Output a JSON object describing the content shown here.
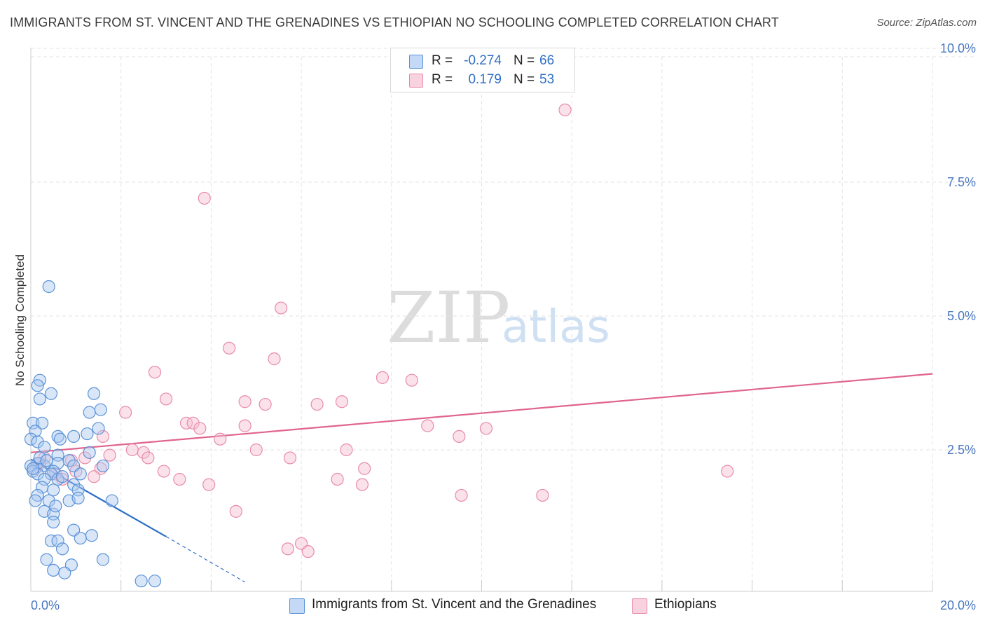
{
  "header": {
    "title": "IMMIGRANTS FROM ST. VINCENT AND THE GRENADINES VS ETHIOPIAN NO SCHOOLING COMPLETED CORRELATION CHART",
    "source": "Source: ZipAtlas.com"
  },
  "watermark": {
    "zip": "ZIP",
    "atlas": "atlas"
  },
  "stats": [
    {
      "r_label": "R =",
      "r_value": "-0.274",
      "n_label": "N =",
      "n_value": "66"
    },
    {
      "r_label": "R =",
      "r_value": "0.179",
      "n_label": "N =",
      "n_value": "53"
    }
  ],
  "legend": [
    {
      "label": "Immigrants from St. Vincent and the Grenadines"
    },
    {
      "label": "Ethiopians"
    }
  ],
  "colors": {
    "blue_fill": "#a9c8ef",
    "blue_stroke": "#5b93d8",
    "blue_line": "#2f6fc7",
    "pink_fill": "#f6bfd1",
    "pink_stroke": "#e98aab",
    "pink_line": "#e0648e",
    "grid": "#e3e3e3",
    "tick_text": "#4a78c2"
  },
  "chart_data": {
    "type": "scatter",
    "title": "IMMIGRANTS FROM ST. VINCENT AND THE GRENADINES VS ETHIOPIAN NO SCHOOLING COMPLETED CORRELATION CHART",
    "xlabel": "",
    "ylabel": "No Schooling Completed",
    "xlim": [
      0,
      20
    ],
    "ylim": [
      0,
      10
    ],
    "x_tick_labels": [
      {
        "value": 0,
        "label": "0.0%"
      },
      {
        "value": 20,
        "label": "20.0%"
      }
    ],
    "y_tick_labels": [
      {
        "value": 2.5,
        "label": "2.5%"
      },
      {
        "value": 5,
        "label": "5.0%"
      },
      {
        "value": 7.5,
        "label": "7.5%"
      },
      {
        "value": 10,
        "label": "10.0%"
      }
    ],
    "series": [
      {
        "name": "Immigrants from St. Vincent and the Grenadines",
        "points": [
          [
            0.4,
            5.55
          ],
          [
            0.2,
            3.8
          ],
          [
            0.15,
            3.7
          ],
          [
            0.45,
            3.55
          ],
          [
            0.2,
            3.45
          ],
          [
            1.4,
            3.55
          ],
          [
            1.55,
            3.25
          ],
          [
            1.3,
            3.2
          ],
          [
            0.05,
            3.0
          ],
          [
            0.25,
            3.0
          ],
          [
            0.1,
            2.85
          ],
          [
            1.5,
            2.9
          ],
          [
            0.6,
            2.75
          ],
          [
            0.95,
            2.75
          ],
          [
            1.25,
            2.8
          ],
          [
            0.0,
            2.7
          ],
          [
            0.15,
            2.65
          ],
          [
            0.65,
            2.7
          ],
          [
            0.3,
            2.55
          ],
          [
            0.6,
            2.4
          ],
          [
            1.3,
            2.45
          ],
          [
            0.85,
            2.3
          ],
          [
            0.15,
            2.25
          ],
          [
            0.0,
            2.2
          ],
          [
            0.3,
            2.2
          ],
          [
            0.6,
            2.25
          ],
          [
            0.95,
            2.2
          ],
          [
            1.6,
            2.2
          ],
          [
            0.05,
            2.1
          ],
          [
            0.5,
            2.1
          ],
          [
            0.15,
            2.05
          ],
          [
            0.45,
            2.05
          ],
          [
            1.1,
            2.05
          ],
          [
            0.3,
            1.95
          ],
          [
            0.6,
            1.95
          ],
          [
            0.7,
            2.0
          ],
          [
            0.25,
            1.8
          ],
          [
            0.5,
            1.75
          ],
          [
            0.95,
            1.85
          ],
          [
            1.05,
            1.75
          ],
          [
            0.15,
            1.65
          ],
          [
            0.1,
            1.55
          ],
          [
            0.4,
            1.55
          ],
          [
            0.85,
            1.55
          ],
          [
            1.8,
            1.55
          ],
          [
            0.3,
            1.35
          ],
          [
            0.5,
            1.3
          ],
          [
            0.5,
            1.15
          ],
          [
            0.95,
            1.0
          ],
          [
            0.45,
            0.8
          ],
          [
            0.6,
            0.8
          ],
          [
            1.1,
            0.85
          ],
          [
            1.35,
            0.9
          ],
          [
            0.7,
            0.65
          ],
          [
            0.35,
            0.45
          ],
          [
            1.6,
            0.45
          ],
          [
            0.9,
            0.35
          ],
          [
            0.5,
            0.25
          ],
          [
            0.75,
            0.2
          ],
          [
            2.45,
            0.05
          ],
          [
            2.75,
            0.05
          ],
          [
            0.2,
            2.35
          ],
          [
            0.05,
            2.15
          ],
          [
            0.35,
            2.3
          ],
          [
            1.05,
            1.6
          ],
          [
            0.55,
            1.45
          ]
        ],
        "trend": {
          "x": [
            0.0,
            3.0
          ],
          "y": [
            2.32,
            0.88
          ]
        },
        "trend_dashed": {
          "x": [
            3.0,
            4.75
          ],
          "y": [
            0.88,
            0.03
          ]
        }
      },
      {
        "name": "Ethiopians",
        "points": [
          [
            11.85,
            8.85
          ],
          [
            3.85,
            7.2
          ],
          [
            5.55,
            5.15
          ],
          [
            4.4,
            4.4
          ],
          [
            5.4,
            4.2
          ],
          [
            2.75,
            3.95
          ],
          [
            7.8,
            3.85
          ],
          [
            8.45,
            3.8
          ],
          [
            3.0,
            3.45
          ],
          [
            4.75,
            3.4
          ],
          [
            5.2,
            3.35
          ],
          [
            6.35,
            3.35
          ],
          [
            6.9,
            3.4
          ],
          [
            2.1,
            3.2
          ],
          [
            3.45,
            3.0
          ],
          [
            3.6,
            3.0
          ],
          [
            3.75,
            2.9
          ],
          [
            4.75,
            2.95
          ],
          [
            8.8,
            2.95
          ],
          [
            10.1,
            2.9
          ],
          [
            9.5,
            2.75
          ],
          [
            1.6,
            2.75
          ],
          [
            4.2,
            2.7
          ],
          [
            2.25,
            2.5
          ],
          [
            2.5,
            2.45
          ],
          [
            5.0,
            2.5
          ],
          [
            7.0,
            2.5
          ],
          [
            1.75,
            2.4
          ],
          [
            2.6,
            2.35
          ],
          [
            5.75,
            2.35
          ],
          [
            0.3,
            2.35
          ],
          [
            1.2,
            2.35
          ],
          [
            0.9,
            2.3
          ],
          [
            1.55,
            2.15
          ],
          [
            2.95,
            2.1
          ],
          [
            7.4,
            2.15
          ],
          [
            15.45,
            2.1
          ],
          [
            0.55,
            2.05
          ],
          [
            1.4,
            2.0
          ],
          [
            3.3,
            1.95
          ],
          [
            6.8,
            1.95
          ],
          [
            0.7,
            1.95
          ],
          [
            3.95,
            1.85
          ],
          [
            7.35,
            1.85
          ],
          [
            9.55,
            1.65
          ],
          [
            11.35,
            1.65
          ],
          [
            4.55,
            1.35
          ],
          [
            6.0,
            0.75
          ],
          [
            5.7,
            0.65
          ],
          [
            6.15,
            0.6
          ],
          [
            0.1,
            2.15
          ],
          [
            0.2,
            2.25
          ],
          [
            1.0,
            2.1
          ]
        ],
        "trend": {
          "x": [
            0.0,
            20.0
          ],
          "y": [
            2.45,
            3.92
          ]
        }
      }
    ]
  }
}
